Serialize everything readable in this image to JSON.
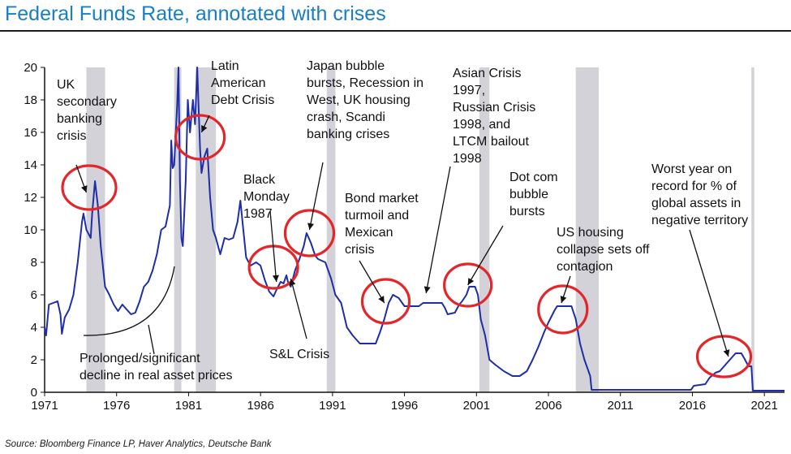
{
  "title": "Federal Funds Rate, annotated with crises",
  "source": "Source: Bloomberg Finance LP, Haver Analytics, Deutsche Bank",
  "colors": {
    "title": "#1a7ec2",
    "line": "#1f2ea8",
    "recession": "#d2d2d8",
    "circle": "#e3262a",
    "text": "#111111"
  },
  "chart_data": {
    "type": "line",
    "title": "Federal Funds Rate, annotated with crises",
    "xlim": [
      1971,
      2022.4
    ],
    "ylim": [
      0,
      20
    ],
    "y_ticks": [
      "0",
      "2",
      "4",
      "6",
      "8",
      "10",
      "12",
      "14",
      "16",
      "18",
      "20"
    ],
    "x_ticks": [
      "1971",
      "1976",
      "1981",
      "1986",
      "1991",
      "1996",
      "2001",
      "2006",
      "2011",
      "2016",
      "2021"
    ],
    "grid": false,
    "legend": "none",
    "recessions": [
      [
        1973.9,
        1975.2
      ],
      [
        1980.0,
        1980.5
      ],
      [
        1981.5,
        1982.9
      ],
      [
        1990.6,
        1991.2
      ],
      [
        2001.2,
        2001.9
      ],
      [
        2007.9,
        2009.5
      ],
      [
        2020.1,
        2020.3
      ]
    ],
    "series": [
      {
        "values": [
          [
            1971.0,
            4.0
          ],
          [
            1971.1,
            3.5
          ],
          [
            1971.3,
            5.4
          ],
          [
            1971.6,
            5.5
          ],
          [
            1971.9,
            5.6
          ],
          [
            1972.1,
            4.8
          ],
          [
            1972.2,
            3.6
          ],
          [
            1972.4,
            4.6
          ],
          [
            1972.7,
            5.1
          ],
          [
            1973.0,
            6.0
          ],
          [
            1973.3,
            8.0
          ],
          [
            1973.6,
            10.5
          ],
          [
            1973.7,
            11.0
          ],
          [
            1973.9,
            10.0
          ],
          [
            1974.2,
            9.5
          ],
          [
            1974.3,
            11.0
          ],
          [
            1974.5,
            13.0
          ],
          [
            1974.7,
            11.5
          ],
          [
            1974.9,
            9.0
          ],
          [
            1975.2,
            6.5
          ],
          [
            1975.5,
            6.0
          ],
          [
            1975.8,
            5.4
          ],
          [
            1976.1,
            5.0
          ],
          [
            1976.4,
            5.4
          ],
          [
            1976.7,
            5.1
          ],
          [
            1977.0,
            4.8
          ],
          [
            1977.3,
            4.9
          ],
          [
            1977.6,
            5.6
          ],
          [
            1977.9,
            6.5
          ],
          [
            1978.2,
            6.8
          ],
          [
            1978.5,
            7.5
          ],
          [
            1978.8,
            8.5
          ],
          [
            1979.1,
            10.0
          ],
          [
            1979.4,
            10.2
          ],
          [
            1979.7,
            11.5
          ],
          [
            1979.8,
            15.5
          ],
          [
            1979.9,
            13.8
          ],
          [
            1980.0,
            14.0
          ],
          [
            1980.2,
            17.5
          ],
          [
            1980.3,
            20.0
          ],
          [
            1980.4,
            13.0
          ],
          [
            1980.5,
            9.5
          ],
          [
            1980.6,
            9.0
          ],
          [
            1980.8,
            13.0
          ],
          [
            1980.95,
            18.0
          ],
          [
            1981.1,
            16.0
          ],
          [
            1981.3,
            18.0
          ],
          [
            1981.45,
            16.5
          ],
          [
            1981.6,
            20.0
          ],
          [
            1981.8,
            15.0
          ],
          [
            1981.9,
            13.5
          ],
          [
            1982.1,
            14.5
          ],
          [
            1982.3,
            15.0
          ],
          [
            1982.5,
            12.0
          ],
          [
            1982.7,
            10.0
          ],
          [
            1982.9,
            9.5
          ],
          [
            1983.2,
            8.5
          ],
          [
            1983.5,
            9.5
          ],
          [
            1983.8,
            9.4
          ],
          [
            1984.1,
            9.5
          ],
          [
            1984.4,
            10.5
          ],
          [
            1984.6,
            11.8
          ],
          [
            1984.8,
            10.0
          ],
          [
            1985.0,
            8.3
          ],
          [
            1985.3,
            7.8
          ],
          [
            1985.7,
            8.0
          ],
          [
            1986.0,
            7.8
          ],
          [
            1986.3,
            6.9
          ],
          [
            1986.6,
            6.2
          ],
          [
            1986.9,
            5.9
          ],
          [
            1987.1,
            6.3
          ],
          [
            1987.4,
            6.8
          ],
          [
            1987.6,
            6.7
          ],
          [
            1987.8,
            7.2
          ],
          [
            1987.9,
            6.8
          ],
          [
            1988.1,
            6.5
          ],
          [
            1988.4,
            7.5
          ],
          [
            1988.7,
            8.2
          ],
          [
            1989.0,
            9.0
          ],
          [
            1989.2,
            9.8
          ],
          [
            1989.5,
            9.2
          ],
          [
            1989.8,
            8.4
          ],
          [
            1990.0,
            8.2
          ],
          [
            1990.5,
            8.0
          ],
          [
            1990.9,
            7.0
          ],
          [
            1991.2,
            6.0
          ],
          [
            1991.6,
            5.5
          ],
          [
            1992.0,
            4.0
          ],
          [
            1992.4,
            3.5
          ],
          [
            1992.9,
            3.0
          ],
          [
            1993.5,
            3.0
          ],
          [
            1994.0,
            3.0
          ],
          [
            1994.3,
            3.7
          ],
          [
            1994.6,
            4.5
          ],
          [
            1994.9,
            5.5
          ],
          [
            1995.2,
            6.0
          ],
          [
            1995.6,
            5.8
          ],
          [
            1996.0,
            5.3
          ],
          [
            1996.5,
            5.3
          ],
          [
            1997.0,
            5.3
          ],
          [
            1997.3,
            5.5
          ],
          [
            1997.8,
            5.5
          ],
          [
            1998.2,
            5.5
          ],
          [
            1998.6,
            5.5
          ],
          [
            1998.8,
            5.2
          ],
          [
            1999.0,
            4.8
          ],
          [
            1999.5,
            4.9
          ],
          [
            1999.8,
            5.4
          ],
          [
            2000.0,
            5.6
          ],
          [
            2000.3,
            6.0
          ],
          [
            2000.5,
            6.5
          ],
          [
            2000.9,
            6.5
          ],
          [
            2001.1,
            6.0
          ],
          [
            2001.3,
            4.5
          ],
          [
            2001.6,
            3.5
          ],
          [
            2001.9,
            2.0
          ],
          [
            2002.3,
            1.7
          ],
          [
            2002.9,
            1.3
          ],
          [
            2003.5,
            1.0
          ],
          [
            2004.0,
            1.0
          ],
          [
            2004.5,
            1.3
          ],
          [
            2004.9,
            2.0
          ],
          [
            2005.3,
            2.8
          ],
          [
            2005.7,
            3.7
          ],
          [
            2006.0,
            4.3
          ],
          [
            2006.4,
            5.0
          ],
          [
            2006.6,
            5.3
          ],
          [
            2007.0,
            5.3
          ],
          [
            2007.6,
            5.3
          ],
          [
            2007.9,
            4.5
          ],
          [
            2008.2,
            3.0
          ],
          [
            2008.5,
            2.0
          ],
          [
            2008.9,
            1.0
          ],
          [
            2009.0,
            0.15
          ],
          [
            2009.5,
            0.15
          ],
          [
            2012,
            0.15
          ],
          [
            2015.9,
            0.15
          ],
          [
            2016.1,
            0.4
          ],
          [
            2016.9,
            0.5
          ],
          [
            2017.2,
            0.9
          ],
          [
            2017.6,
            1.2
          ],
          [
            2017.9,
            1.3
          ],
          [
            2018.2,
            1.6
          ],
          [
            2018.5,
            1.9
          ],
          [
            2018.8,
            2.2
          ],
          [
            2019.0,
            2.4
          ],
          [
            2019.4,
            2.4
          ],
          [
            2019.6,
            2.1
          ],
          [
            2019.9,
            1.6
          ],
          [
            2020.1,
            1.6
          ],
          [
            2020.2,
            0.1
          ],
          [
            2021.0,
            0.1
          ],
          [
            2022.4,
            0.1
          ]
        ]
      }
    ],
    "annotations": [
      {
        "lines": [
          "UK",
          "secondary",
          "banking",
          "crisis"
        ],
        "circle": [
          1974.1,
          12.6
        ],
        "arrow_to": [
          1973.9,
          12.3
        ]
      },
      {
        "lines": [
          "Latin",
          "American",
          "Debt Crisis"
        ],
        "circle": [
          1981.8,
          15.7
        ],
        "arrow_to": [
          1981.9,
          16.0
        ]
      },
      {
        "lines": [
          "Black",
          "Monday",
          "1987"
        ],
        "circle": [
          1986.9,
          7.7
        ],
        "arrow_to": [
          1987.1,
          6.8
        ]
      },
      {
        "lines": [
          "S&L Crisis"
        ],
        "circle": null,
        "arrow_to": [
          1988.1,
          7.0
        ]
      },
      {
        "lines": [
          "Japan bubble",
          "bursts, Recession in",
          "West, UK housing",
          "crash, Scandi",
          "banking crises"
        ],
        "circle": [
          1989.4,
          9.8
        ],
        "arrow_to": [
          1989.4,
          10.0
        ]
      },
      {
        "lines": [
          "Bond market",
          "turmoil and",
          "Mexican",
          "crisis"
        ],
        "circle": [
          1994.7,
          5.6
        ],
        "arrow_to": [
          1994.6,
          5.5
        ]
      },
      {
        "lines": [
          "Asian Crisis",
          "1997,",
          "Russian Crisis",
          "1998, and",
          "LTCM bailout",
          "1998"
        ],
        "circle": null,
        "arrow_to": [
          1997.5,
          6.1
        ]
      },
      {
        "lines": [
          "Dot com",
          "bubble",
          "bursts"
        ],
        "circle": [
          2000.4,
          6.6
        ],
        "arrow_to": [
          2000.4,
          6.6
        ]
      },
      {
        "lines": [
          "US housing",
          "collapse sets off",
          "contagion"
        ],
        "circle": [
          2007.0,
          5.1
        ],
        "arrow_to": [
          2006.9,
          5.5
        ]
      },
      {
        "lines": [
          "Worst year on",
          "record for % of",
          "global assets in",
          "negative territory"
        ],
        "circle": [
          2018.2,
          2.2
        ],
        "arrow_to": [
          2018.5,
          2.2
        ]
      },
      {
        "lines": [
          "Prolonged/significant",
          "decline in real asset prices"
        ],
        "circle": null,
        "arrow_to": null
      }
    ]
  }
}
